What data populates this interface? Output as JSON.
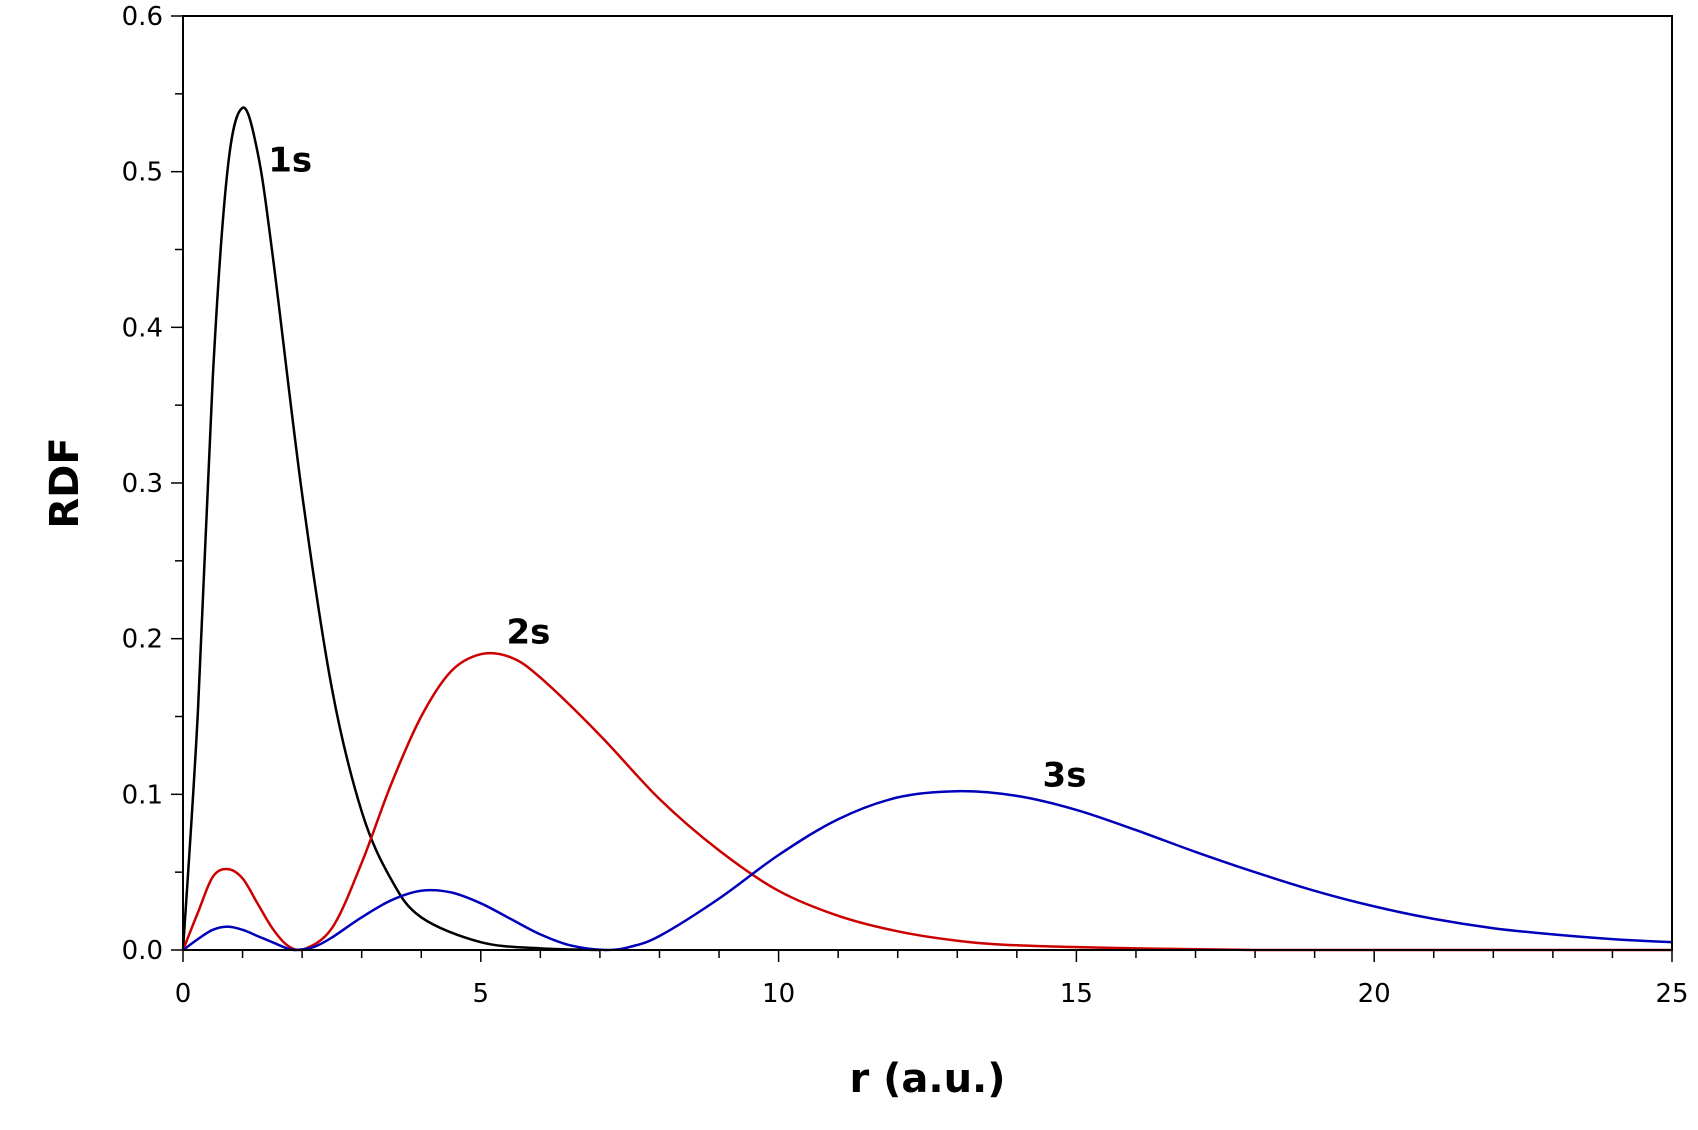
{
  "chart_data": {
    "type": "line",
    "xlabel": "r (a.u.)",
    "ylabel": "RDF",
    "xlim": [
      0,
      25
    ],
    "ylim": [
      0,
      0.6
    ],
    "x_ticks": [
      "0",
      "5",
      "10",
      "15",
      "20",
      "25"
    ],
    "y_ticks": [
      "0.0",
      "0.1",
      "0.2",
      "0.3",
      "0.4",
      "0.5",
      "0.6"
    ],
    "grid": false,
    "legend": "none",
    "series": [
      {
        "name": "1s",
        "color": "#000000",
        "x": [
          0,
          0.25,
          0.5,
          0.75,
          1.0,
          1.25,
          1.5,
          2.0,
          2.5,
          3.0,
          3.5,
          4.0,
          5.0,
          6.0,
          7.0
        ],
        "y": [
          0,
          0.153,
          0.368,
          0.502,
          0.541,
          0.513,
          0.448,
          0.293,
          0.168,
          0.089,
          0.045,
          0.021,
          0.005,
          0.001,
          0
        ]
      },
      {
        "name": "2s",
        "color": "#cc0000",
        "x": [
          0,
          0.25,
          0.5,
          0.75,
          1.0,
          1.25,
          1.5,
          1.75,
          2.0,
          2.5,
          3.0,
          3.5,
          4.0,
          4.5,
          5.0,
          5.5,
          6.0,
          7.0,
          8.0,
          9.0,
          10.0,
          11.0,
          12.0,
          13.0,
          14.0,
          16.0,
          18.0,
          20.0,
          25.0
        ],
        "y": [
          0,
          0.024,
          0.047,
          0.052,
          0.046,
          0.03,
          0.014,
          0.003,
          0,
          0.014,
          0.056,
          0.107,
          0.15,
          0.179,
          0.19,
          0.188,
          0.175,
          0.138,
          0.097,
          0.064,
          0.038,
          0.022,
          0.012,
          0.006,
          0.003,
          0.001,
          0,
          0,
          0
        ]
      },
      {
        "name": "3s",
        "color": "#0000bb",
        "x": [
          0,
          0.25,
          0.5,
          0.75,
          1.0,
          1.25,
          1.5,
          1.75,
          1.9,
          2.2,
          2.5,
          3.0,
          3.5,
          4.0,
          4.5,
          5.0,
          5.5,
          6.0,
          6.5,
          7.1,
          7.5,
          8.0,
          9.0,
          10.0,
          11.0,
          12.0,
          13.0,
          14.0,
          15.0,
          16.0,
          17.0,
          18.0,
          19.0,
          20.0,
          21.0,
          22.0,
          23.0,
          24.0,
          25.0
        ],
        "y": [
          0,
          0.007,
          0.013,
          0.015,
          0.013,
          0.009,
          0.005,
          0.001,
          0,
          0.002,
          0.008,
          0.021,
          0.032,
          0.038,
          0.037,
          0.03,
          0.02,
          0.01,
          0.003,
          0,
          0.002,
          0.009,
          0.033,
          0.061,
          0.084,
          0.098,
          0.102,
          0.099,
          0.09,
          0.077,
          0.063,
          0.05,
          0.038,
          0.028,
          0.02,
          0.014,
          0.01,
          0.007,
          0.005
        ]
      }
    ],
    "annotations": [
      {
        "text": "1s",
        "x": 1.8,
        "y": 0.5
      },
      {
        "text": "2s",
        "x": 5.8,
        "y": 0.197
      },
      {
        "text": "3s",
        "x": 14.8,
        "y": 0.105
      }
    ]
  }
}
